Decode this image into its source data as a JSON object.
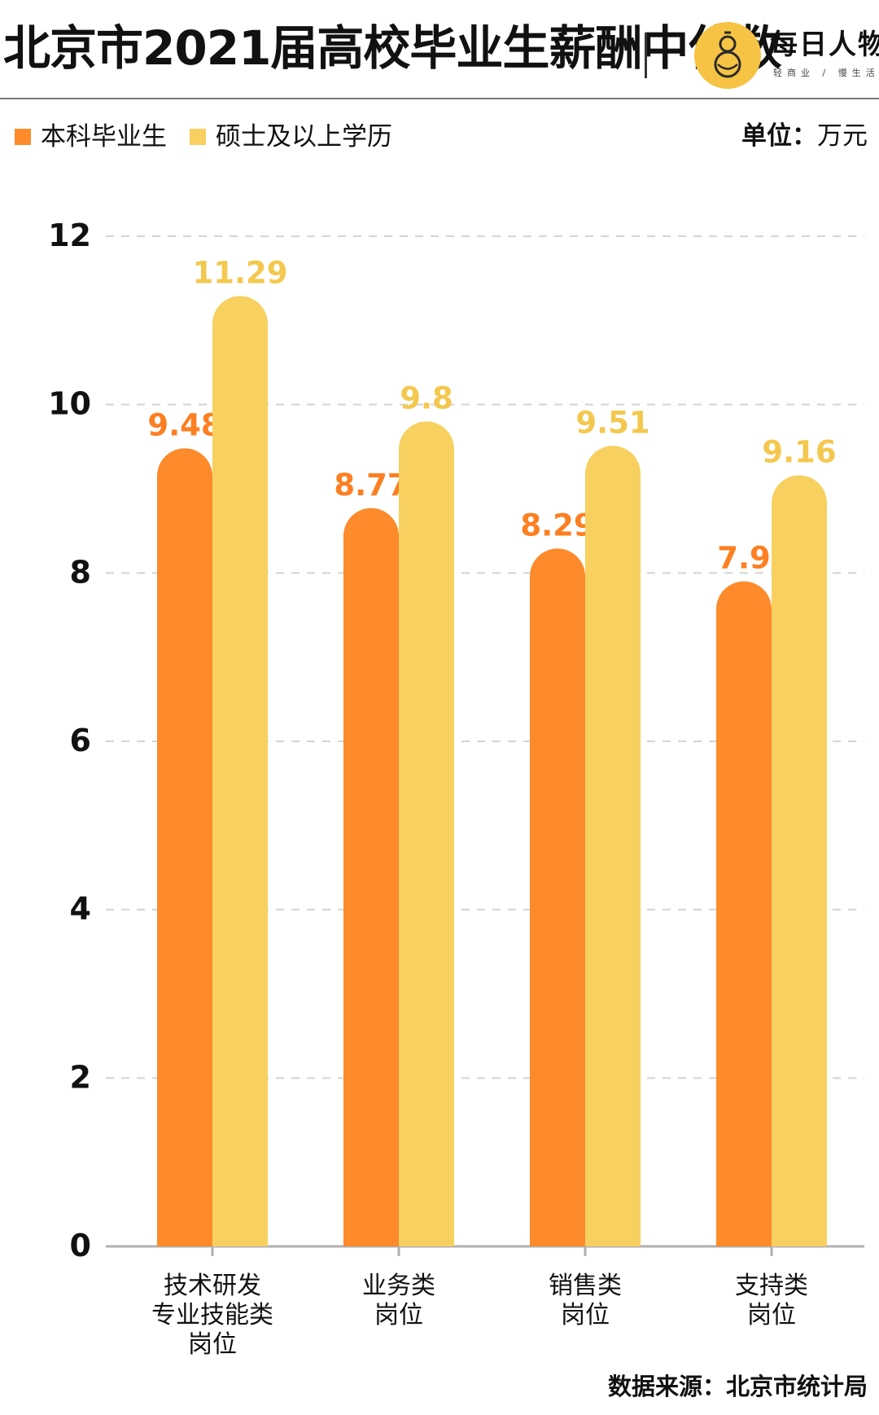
{
  "header": {
    "title": "北京市2021届高校毕业生薪酬中位数",
    "brand_name": "每日人物",
    "brand_slogan": "轻商业 / 慢生活",
    "logo_icon": "gourd-logo-icon"
  },
  "unit": {
    "key": "单位：",
    "value": "万元"
  },
  "source": "数据来源：北京市统计局",
  "colors": {
    "bachelor": "#fd8a2b",
    "master": "#f7d060",
    "logo_bg": "#f6c344",
    "label_bachelor": "#fd7f22",
    "label_master": "#f4c84f"
  },
  "chart_data": {
    "type": "bar",
    "categories": [
      [
        "技术研发",
        "专业技能类",
        "岗位"
      ],
      [
        "业务类",
        "岗位"
      ],
      [
        "销售类",
        "岗位"
      ],
      [
        "支持类",
        "岗位"
      ]
    ],
    "series": [
      {
        "name": "本科毕业生",
        "values": [
          9.48,
          8.77,
          8.29,
          7.9
        ],
        "labels": [
          "9.48",
          "8.77",
          "8.29",
          "7.9"
        ]
      },
      {
        "name": "硕士及以上学历",
        "values": [
          11.29,
          9.8,
          9.51,
          9.16
        ],
        "labels": [
          "11.29",
          "9.8",
          "9.51",
          "9.16"
        ]
      }
    ],
    "ylim": [
      0,
      12
    ],
    "yticks": [
      0,
      2,
      4,
      6,
      8,
      10,
      12
    ],
    "grid": true,
    "legend": "top-left"
  }
}
